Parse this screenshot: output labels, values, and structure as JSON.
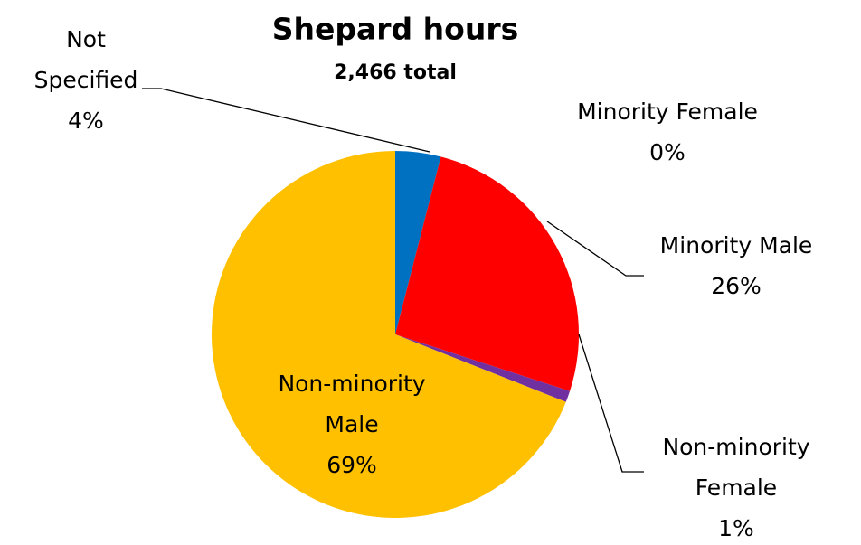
{
  "chart_data": {
    "type": "pie",
    "title": "Shepard hours",
    "subtitle": "2,466 total",
    "categories": [
      "Not Specified",
      "Minority Female",
      "Minority Male",
      "Non-minority Female",
      "Non-minority Male"
    ],
    "values": [
      4,
      0,
      26,
      1,
      69
    ],
    "value_labels": [
      "4%",
      "0%",
      "26%",
      "1%",
      "69%"
    ],
    "colors": [
      "#0070c0",
      "#00b050",
      "#ff0000",
      "#7030a0",
      "#ffc000"
    ]
  }
}
